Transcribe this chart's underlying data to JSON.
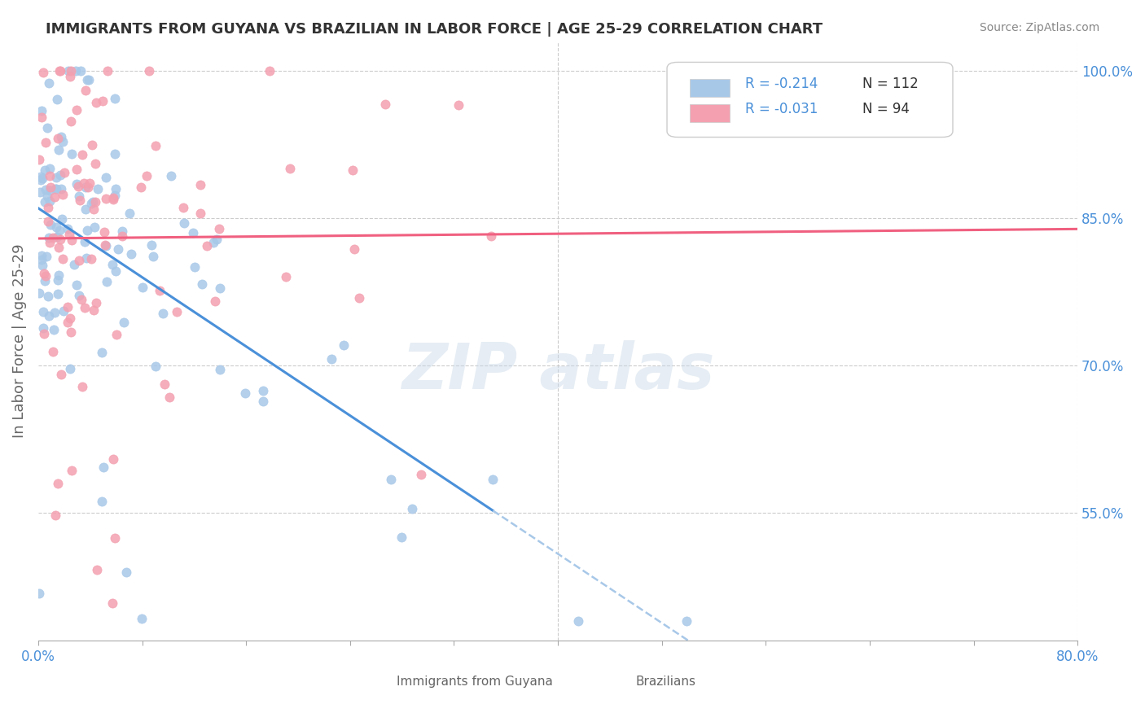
{
  "title": "IMMIGRANTS FROM GUYANA VS BRAZILIAN IN LABOR FORCE | AGE 25-29 CORRELATION CHART",
  "source": "Source: ZipAtlas.com",
  "ylabel": "In Labor Force | Age 25-29",
  "xlim": [
    0.0,
    0.8
  ],
  "ylim": [
    0.42,
    1.03
  ],
  "xticks": [
    0.0,
    0.08,
    0.16,
    0.24,
    0.32,
    0.4,
    0.48,
    0.56,
    0.64,
    0.72,
    0.8
  ],
  "xticklabels": [
    "0.0%",
    "",
    "",
    "",
    "",
    "",
    "",
    "",
    "",
    "",
    "80.0%"
  ],
  "yticks_right": [
    0.55,
    0.7,
    0.85,
    1.0
  ],
  "ytick_right_labels": [
    "55.0%",
    "70.0%",
    "85.0%",
    "100.0%"
  ],
  "legend_r1": "R = -0.214",
  "legend_n1": "N = 112",
  "legend_r2": "R = -0.031",
  "legend_n2": "N = 94",
  "guyana_color": "#a8c8e8",
  "brazil_color": "#f4a0b0",
  "guyana_line_color": "#4a90d9",
  "brazil_line_color": "#f06080",
  "dashed_line_color": "#a8c8e8",
  "background_color": "#ffffff",
  "seed_guyana": 42,
  "seed_brazil": 123,
  "guyana_n": 112,
  "brazil_n": 94
}
